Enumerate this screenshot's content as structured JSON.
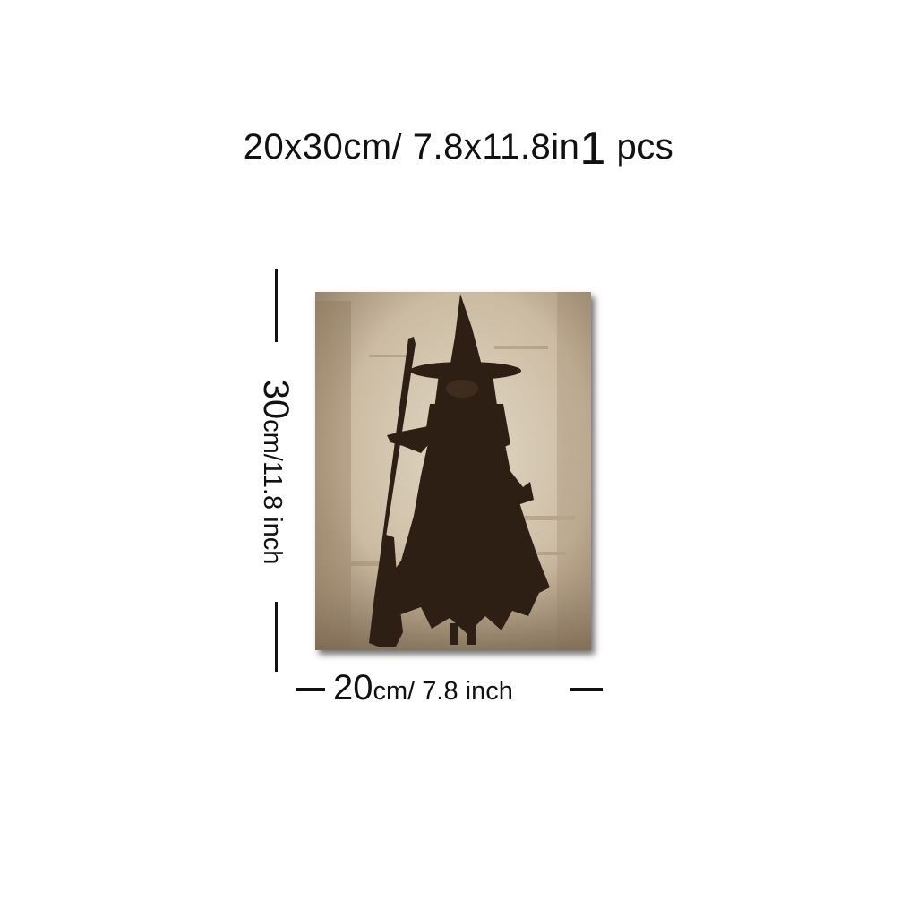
{
  "title": {
    "size_text": "20x30cm/ 7.8x11.8in",
    "quantity_number": "1",
    "quantity_unit": "pcs"
  },
  "height_label": {
    "value": "30",
    "unit_text": "cm/11.8 inch"
  },
  "width_label": {
    "value": "20",
    "unit_text": "cm/ 7.8 inch"
  },
  "colors": {
    "background": "#ffffff",
    "text": "#111111",
    "canvas_base": "#cdbfa9",
    "figure": "#2e1f15"
  },
  "painting": {
    "subject": "witch-with-broom"
  }
}
